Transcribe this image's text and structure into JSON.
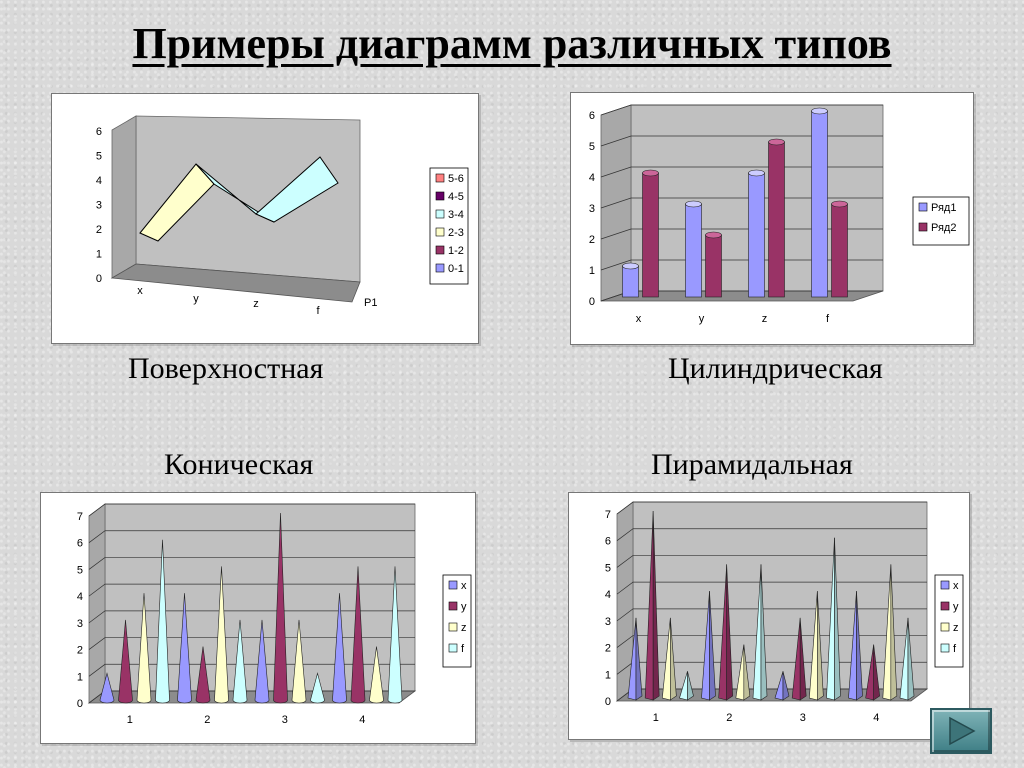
{
  "title": "Примеры диаграмм различных типов",
  "captions": {
    "surface": "Поверхностная",
    "cylinder": "Цилиндрическая",
    "cone": "Коническая",
    "pyramid": "Пирамидальная"
  },
  "colors": {
    "blue": "#9999ff",
    "maroon": "#993366",
    "cream": "#ffffcc",
    "cyan": "#ccffff",
    "purple": "#660066",
    "salmon": "#ff8080",
    "wall": "#c0c0c0"
  },
  "chart_data": [
    {
      "id": "surface",
      "type": "area",
      "subtype": "3d-surface",
      "categories": [
        "x",
        "y",
        "z",
        "f"
      ],
      "series": [
        {
          "name": "P1",
          "values": [
            1,
            4,
            2,
            5
          ]
        }
      ],
      "ylim": [
        0,
        6
      ],
      "yticks": [
        "0",
        "1",
        "2",
        "3",
        "4",
        "5",
        "6"
      ],
      "legend": [
        "5-6",
        "4-5",
        "3-4",
        "2-3",
        "1-2",
        "0-1"
      ],
      "legend_position": "right"
    },
    {
      "id": "cylinder",
      "type": "bar",
      "subtype": "3d-cylinder",
      "categories": [
        "x",
        "y",
        "z",
        "f"
      ],
      "series": [
        {
          "name": "Ряд1",
          "values": [
            1,
            3,
            4,
            6
          ]
        },
        {
          "name": "Ряд2",
          "values": [
            4,
            2,
            5,
            3
          ]
        }
      ],
      "ylim": [
        0,
        6
      ],
      "yticks": [
        "0",
        "1",
        "2",
        "3",
        "4",
        "5",
        "6"
      ],
      "legend_position": "right"
    },
    {
      "id": "cone",
      "type": "bar",
      "subtype": "3d-cone",
      "categories": [
        "1",
        "2",
        "3",
        "4"
      ],
      "series": [
        {
          "name": "x",
          "values": [
            1,
            4,
            3,
            4
          ]
        },
        {
          "name": "y",
          "values": [
            3,
            2,
            7,
            5
          ]
        },
        {
          "name": "z",
          "values": [
            4,
            5,
            3,
            2
          ]
        },
        {
          "name": "f",
          "values": [
            6,
            3,
            1,
            5
          ]
        }
      ],
      "ylim": [
        0,
        7
      ],
      "yticks": [
        "0",
        "1",
        "2",
        "3",
        "4",
        "5",
        "6",
        "7"
      ],
      "legend_position": "right"
    },
    {
      "id": "pyramid",
      "type": "bar",
      "subtype": "3d-pyramid",
      "categories": [
        "1",
        "2",
        "3",
        "4"
      ],
      "series": [
        {
          "name": "x",
          "values": [
            3,
            4,
            1,
            4
          ]
        },
        {
          "name": "y",
          "values": [
            7,
            5,
            3,
            2
          ]
        },
        {
          "name": "z",
          "values": [
            3,
            2,
            4,
            5
          ]
        },
        {
          "name": "f",
          "values": [
            1,
            5,
            6,
            3
          ]
        }
      ],
      "ylim": [
        0,
        7
      ],
      "yticks": [
        "0",
        "1",
        "2",
        "3",
        "4",
        "5",
        "6",
        "7"
      ],
      "legend_position": "right"
    }
  ]
}
